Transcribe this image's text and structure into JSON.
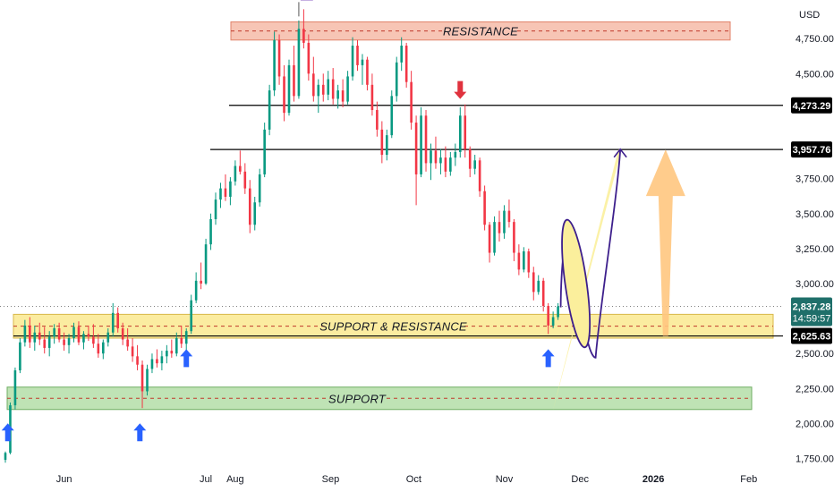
{
  "chart_data": {
    "type": "candlestick",
    "currency": "USD",
    "x_ticks": [
      "Jun",
      "Jul",
      "Aug",
      "Sep",
      "Oct",
      "Nov",
      "Dec",
      "2026",
      "Feb"
    ],
    "y_ticks": [
      "4,750.00",
      "4,500.00",
      "3,750.00",
      "3,500.00",
      "3,250.00",
      "3,000.00",
      "2,500.00",
      "2,250.00",
      "2,000.00",
      "1,750.00"
    ],
    "ylim": [
      1700,
      5000
    ],
    "levels": [
      {
        "name": "level-4273",
        "value": 4273.29,
        "label": "4,273.29"
      },
      {
        "name": "level-3957",
        "value": 3957.76,
        "label": "3,957.76"
      },
      {
        "name": "level-2625",
        "value": 2625.63,
        "label": "2,625.63"
      }
    ],
    "price_badge": {
      "label": "2,837.28",
      "countdown": "14:59:57"
    },
    "zones": [
      {
        "name": "resistance-zone",
        "label": "RESISTANCE",
        "low": 4740,
        "high": 4870,
        "color": "#f7c5b5",
        "border": "#e0826a"
      },
      {
        "name": "support-resistance-zone",
        "label": "SUPPORT & RESISTANCE",
        "low": 2610,
        "high": 2780,
        "color": "#fbeca0",
        "border": "#d8b84a"
      },
      {
        "name": "support-zone",
        "label": "SUPPORT",
        "low": 2100,
        "high": 2260,
        "color": "#bfe3b5",
        "border": "#6fae63"
      }
    ],
    "candles": [
      {
        "d": 0,
        "o": 1740,
        "h": 1800,
        "l": 1720,
        "c": 1790
      },
      {
        "d": 2,
        "o": 1790,
        "h": 2150,
        "l": 1780,
        "c": 2130
      },
      {
        "d": 4,
        "o": 2130,
        "h": 2400,
        "l": 2100,
        "c": 2380
      },
      {
        "d": 6,
        "o": 2380,
        "h": 2610,
        "l": 2360,
        "c": 2580
      },
      {
        "d": 8,
        "o": 2580,
        "h": 2740,
        "l": 2550,
        "c": 2700
      },
      {
        "d": 10,
        "o": 2700,
        "h": 2760,
        "l": 2540,
        "c": 2580
      },
      {
        "d": 12,
        "o": 2580,
        "h": 2700,
        "l": 2520,
        "c": 2650
      },
      {
        "d": 14,
        "o": 2650,
        "h": 2720,
        "l": 2560,
        "c": 2600
      },
      {
        "d": 16,
        "o": 2600,
        "h": 2690,
        "l": 2500,
        "c": 2540
      },
      {
        "d": 18,
        "o": 2540,
        "h": 2660,
        "l": 2480,
        "c": 2620
      },
      {
        "d": 20,
        "o": 2620,
        "h": 2710,
        "l": 2570,
        "c": 2680
      },
      {
        "d": 22,
        "o": 2680,
        "h": 2720,
        "l": 2580,
        "c": 2600
      },
      {
        "d": 24,
        "o": 2600,
        "h": 2650,
        "l": 2520,
        "c": 2560
      },
      {
        "d": 26,
        "o": 2560,
        "h": 2640,
        "l": 2500,
        "c": 2610
      },
      {
        "d": 28,
        "o": 2610,
        "h": 2720,
        "l": 2580,
        "c": 2690
      },
      {
        "d": 30,
        "o": 2690,
        "h": 2730,
        "l": 2560,
        "c": 2580
      },
      {
        "d": 32,
        "o": 2580,
        "h": 2660,
        "l": 2530,
        "c": 2640
      },
      {
        "d": 34,
        "o": 2640,
        "h": 2700,
        "l": 2590,
        "c": 2620
      },
      {
        "d": 36,
        "o": 2620,
        "h": 2710,
        "l": 2540,
        "c": 2570
      },
      {
        "d": 38,
        "o": 2570,
        "h": 2640,
        "l": 2470,
        "c": 2500
      },
      {
        "d": 40,
        "o": 2500,
        "h": 2600,
        "l": 2460,
        "c": 2580
      },
      {
        "d": 42,
        "o": 2580,
        "h": 2680,
        "l": 2550,
        "c": 2650
      },
      {
        "d": 44,
        "o": 2650,
        "h": 2860,
        "l": 2620,
        "c": 2790
      },
      {
        "d": 46,
        "o": 2790,
        "h": 2830,
        "l": 2650,
        "c": 2680
      },
      {
        "d": 48,
        "o": 2680,
        "h": 2720,
        "l": 2560,
        "c": 2600
      },
      {
        "d": 50,
        "o": 2600,
        "h": 2680,
        "l": 2520,
        "c": 2550
      },
      {
        "d": 52,
        "o": 2550,
        "h": 2610,
        "l": 2440,
        "c": 2480
      },
      {
        "d": 54,
        "o": 2480,
        "h": 2560,
        "l": 2380,
        "c": 2420
      },
      {
        "d": 56,
        "o": 2420,
        "h": 2450,
        "l": 2110,
        "c": 2230
      },
      {
        "d": 58,
        "o": 2230,
        "h": 2420,
        "l": 2200,
        "c": 2390
      },
      {
        "d": 60,
        "o": 2390,
        "h": 2500,
        "l": 2360,
        "c": 2460
      },
      {
        "d": 62,
        "o": 2460,
        "h": 2530,
        "l": 2400,
        "c": 2430
      },
      {
        "d": 64,
        "o": 2430,
        "h": 2520,
        "l": 2380,
        "c": 2480
      },
      {
        "d": 66,
        "o": 2480,
        "h": 2560,
        "l": 2430,
        "c": 2520
      },
      {
        "d": 68,
        "o": 2520,
        "h": 2600,
        "l": 2470,
        "c": 2500
      },
      {
        "d": 70,
        "o": 2500,
        "h": 2650,
        "l": 2480,
        "c": 2610
      },
      {
        "d": 72,
        "o": 2610,
        "h": 2700,
        "l": 2540,
        "c": 2570
      },
      {
        "d": 74,
        "o": 2570,
        "h": 2680,
        "l": 2520,
        "c": 2660
      },
      {
        "d": 76,
        "o": 2660,
        "h": 2920,
        "l": 2640,
        "c": 2880
      },
      {
        "d": 78,
        "o": 2880,
        "h": 3080,
        "l": 2860,
        "c": 3020
      },
      {
        "d": 80,
        "o": 3020,
        "h": 3150,
        "l": 2960,
        "c": 3000
      },
      {
        "d": 82,
        "o": 3000,
        "h": 3320,
        "l": 2990,
        "c": 3280
      },
      {
        "d": 84,
        "o": 3280,
        "h": 3500,
        "l": 3240,
        "c": 3460
      },
      {
        "d": 86,
        "o": 3460,
        "h": 3650,
        "l": 3420,
        "c": 3600
      },
      {
        "d": 88,
        "o": 3600,
        "h": 3720,
        "l": 3540,
        "c": 3680
      },
      {
        "d": 90,
        "o": 3680,
        "h": 3780,
        "l": 3590,
        "c": 3620
      },
      {
        "d": 92,
        "o": 3620,
        "h": 3760,
        "l": 3560,
        "c": 3730
      },
      {
        "d": 94,
        "o": 3730,
        "h": 3880,
        "l": 3700,
        "c": 3840
      },
      {
        "d": 96,
        "o": 3840,
        "h": 3950,
        "l": 3780,
        "c": 3800
      },
      {
        "d": 98,
        "o": 3800,
        "h": 3860,
        "l": 3640,
        "c": 3680
      },
      {
        "d": 100,
        "o": 3680,
        "h": 3740,
        "l": 3360,
        "c": 3420
      },
      {
        "d": 102,
        "o": 3420,
        "h": 3620,
        "l": 3380,
        "c": 3580
      },
      {
        "d": 104,
        "o": 3580,
        "h": 3820,
        "l": 3550,
        "c": 3780
      },
      {
        "d": 106,
        "o": 3780,
        "h": 4150,
        "l": 3760,
        "c": 4100
      },
      {
        "d": 108,
        "o": 4100,
        "h": 4420,
        "l": 4060,
        "c": 4380
      },
      {
        "d": 110,
        "o": 4380,
        "h": 4800,
        "l": 4340,
        "c": 4740
      },
      {
        "d": 112,
        "o": 4740,
        "h": 4780,
        "l": 4420,
        "c": 4480
      },
      {
        "d": 114,
        "o": 4480,
        "h": 4560,
        "l": 4160,
        "c": 4220
      },
      {
        "d": 116,
        "o": 4220,
        "h": 4600,
        "l": 4200,
        "c": 4560
      },
      {
        "d": 118,
        "o": 4560,
        "h": 4700,
        "l": 4300,
        "c": 4340
      },
      {
        "d": 120,
        "o": 4340,
        "h": 4880,
        "l": 4320,
        "c": 4820
      },
      {
        "d": 122,
        "o": 4820,
        "h": 4960,
        "l": 4680,
        "c": 4720
      },
      {
        "d": 124,
        "o": 4720,
        "h": 4780,
        "l": 4450,
        "c": 4500
      },
      {
        "d": 126,
        "o": 4500,
        "h": 4620,
        "l": 4300,
        "c": 4340
      },
      {
        "d": 128,
        "o": 4340,
        "h": 4460,
        "l": 4220,
        "c": 4420
      },
      {
        "d": 130,
        "o": 4420,
        "h": 4500,
        "l": 4300,
        "c": 4350
      },
      {
        "d": 132,
        "o": 4350,
        "h": 4520,
        "l": 4310,
        "c": 4460
      },
      {
        "d": 134,
        "o": 4460,
        "h": 4540,
        "l": 4280,
        "c": 4320
      },
      {
        "d": 136,
        "o": 4320,
        "h": 4420,
        "l": 4250,
        "c": 4380
      },
      {
        "d": 138,
        "o": 4380,
        "h": 4460,
        "l": 4260,
        "c": 4300
      },
      {
        "d": 140,
        "o": 4300,
        "h": 4520,
        "l": 4280,
        "c": 4480
      },
      {
        "d": 142,
        "o": 4480,
        "h": 4760,
        "l": 4450,
        "c": 4700
      },
      {
        "d": 144,
        "o": 4700,
        "h": 4740,
        "l": 4520,
        "c": 4560
      },
      {
        "d": 146,
        "o": 4560,
        "h": 4640,
        "l": 4420,
        "c": 4600
      },
      {
        "d": 148,
        "o": 4600,
        "h": 4620,
        "l": 4380,
        "c": 4420
      },
      {
        "d": 150,
        "o": 4420,
        "h": 4500,
        "l": 4200,
        "c": 4240
      },
      {
        "d": 152,
        "o": 4240,
        "h": 4300,
        "l": 4050,
        "c": 4100
      },
      {
        "d": 154,
        "o": 4100,
        "h": 4160,
        "l": 3860,
        "c": 3920
      },
      {
        "d": 156,
        "o": 3920,
        "h": 4100,
        "l": 3880,
        "c": 4060
      },
      {
        "d": 158,
        "o": 4060,
        "h": 4380,
        "l": 4040,
        "c": 4340
      },
      {
        "d": 160,
        "o": 4340,
        "h": 4620,
        "l": 4300,
        "c": 4580
      },
      {
        "d": 162,
        "o": 4580,
        "h": 4760,
        "l": 4520,
        "c": 4700
      },
      {
        "d": 164,
        "o": 4700,
        "h": 4720,
        "l": 4400,
        "c": 4440
      },
      {
        "d": 166,
        "o": 4440,
        "h": 4520,
        "l": 4100,
        "c": 4150
      },
      {
        "d": 168,
        "o": 4150,
        "h": 4200,
        "l": 3560,
        "c": 3780
      },
      {
        "d": 170,
        "o": 3780,
        "h": 4260,
        "l": 3760,
        "c": 4200
      },
      {
        "d": 172,
        "o": 4200,
        "h": 4240,
        "l": 3800,
        "c": 3860
      },
      {
        "d": 174,
        "o": 3860,
        "h": 4000,
        "l": 3740,
        "c": 3950
      },
      {
        "d": 176,
        "o": 3950,
        "h": 4050,
        "l": 3820,
        "c": 3860
      },
      {
        "d": 178,
        "o": 3860,
        "h": 3960,
        "l": 3780,
        "c": 3900
      },
      {
        "d": 180,
        "o": 3900,
        "h": 3980,
        "l": 3760,
        "c": 3800
      },
      {
        "d": 182,
        "o": 3800,
        "h": 3940,
        "l": 3770,
        "c": 3900
      },
      {
        "d": 184,
        "o": 3900,
        "h": 4000,
        "l": 3840,
        "c": 3940
      },
      {
        "d": 186,
        "o": 3940,
        "h": 4260,
        "l": 3900,
        "c": 4200
      },
      {
        "d": 188,
        "o": 4200,
        "h": 4280,
        "l": 3900,
        "c": 3960
      },
      {
        "d": 190,
        "o": 3960,
        "h": 3980,
        "l": 3760,
        "c": 3820
      },
      {
        "d": 192,
        "o": 3820,
        "h": 3920,
        "l": 3780,
        "c": 3880
      },
      {
        "d": 194,
        "o": 3880,
        "h": 3900,
        "l": 3620,
        "c": 3660
      },
      {
        "d": 196,
        "o": 3660,
        "h": 3700,
        "l": 3380,
        "c": 3420
      },
      {
        "d": 198,
        "o": 3420,
        "h": 3440,
        "l": 3150,
        "c": 3220
      },
      {
        "d": 200,
        "o": 3220,
        "h": 3480,
        "l": 3200,
        "c": 3440
      },
      {
        "d": 202,
        "o": 3440,
        "h": 3520,
        "l": 3300,
        "c": 3360
      },
      {
        "d": 204,
        "o": 3360,
        "h": 3560,
        "l": 3320,
        "c": 3520
      },
      {
        "d": 206,
        "o": 3520,
        "h": 3600,
        "l": 3400,
        "c": 3440
      },
      {
        "d": 208,
        "o": 3440,
        "h": 3460,
        "l": 3160,
        "c": 3220
      },
      {
        "d": 210,
        "o": 3220,
        "h": 3280,
        "l": 3060,
        "c": 3100
      },
      {
        "d": 212,
        "o": 3100,
        "h": 3260,
        "l": 3080,
        "c": 3230
      },
      {
        "d": 214,
        "o": 3230,
        "h": 3250,
        "l": 3040,
        "c": 3080
      },
      {
        "d": 216,
        "o": 3080,
        "h": 3120,
        "l": 2880,
        "c": 2940
      },
      {
        "d": 218,
        "o": 2940,
        "h": 3060,
        "l": 2920,
        "c": 3020
      },
      {
        "d": 220,
        "o": 3020,
        "h": 3040,
        "l": 2800,
        "c": 2840
      },
      {
        "d": 222,
        "o": 2840,
        "h": 2860,
        "l": 2640,
        "c": 2700
      },
      {
        "d": 224,
        "o": 2700,
        "h": 2800,
        "l": 2680,
        "c": 2760
      },
      {
        "d": 226,
        "o": 2760,
        "h": 2860,
        "l": 2740,
        "c": 2837
      }
    ],
    "candle_colors": {
      "up": "#089981",
      "down": "#f23645"
    },
    "markers": [
      {
        "name": "red-down-arrow",
        "d": 186,
        "value": 4370,
        "dir": "down",
        "color": "#e0323e"
      },
      {
        "name": "blue-up-arrow-1",
        "d": 1,
        "value": 1950,
        "dir": "up",
        "color": "#2962ff"
      },
      {
        "name": "blue-up-arrow-2",
        "d": 55,
        "value": 1950,
        "dir": "up",
        "color": "#2962ff"
      },
      {
        "name": "blue-up-arrow-3",
        "d": 74,
        "value": 2480,
        "dir": "up",
        "color": "#2962ff"
      },
      {
        "name": "blue-up-arrow-4",
        "d": 222,
        "value": 2480,
        "dir": "up",
        "color": "#2962ff"
      }
    ],
    "projection": {
      "start_d": 226,
      "mid_d": 248,
      "end_d": 250,
      "low": 2470,
      "high": 3960,
      "color": "#fbef9c",
      "stroke": "#3d1f8c"
    },
    "target_arrow": {
      "d": 270,
      "from": 2625.63,
      "to": 3957.76,
      "color": "#ffc680"
    },
    "x_tick_days": [
      24,
      82,
      94,
      133,
      167,
      204,
      235,
      265,
      304
    ],
    "flag": {
      "d": 120,
      "color": "#6a2fb2"
    }
  }
}
